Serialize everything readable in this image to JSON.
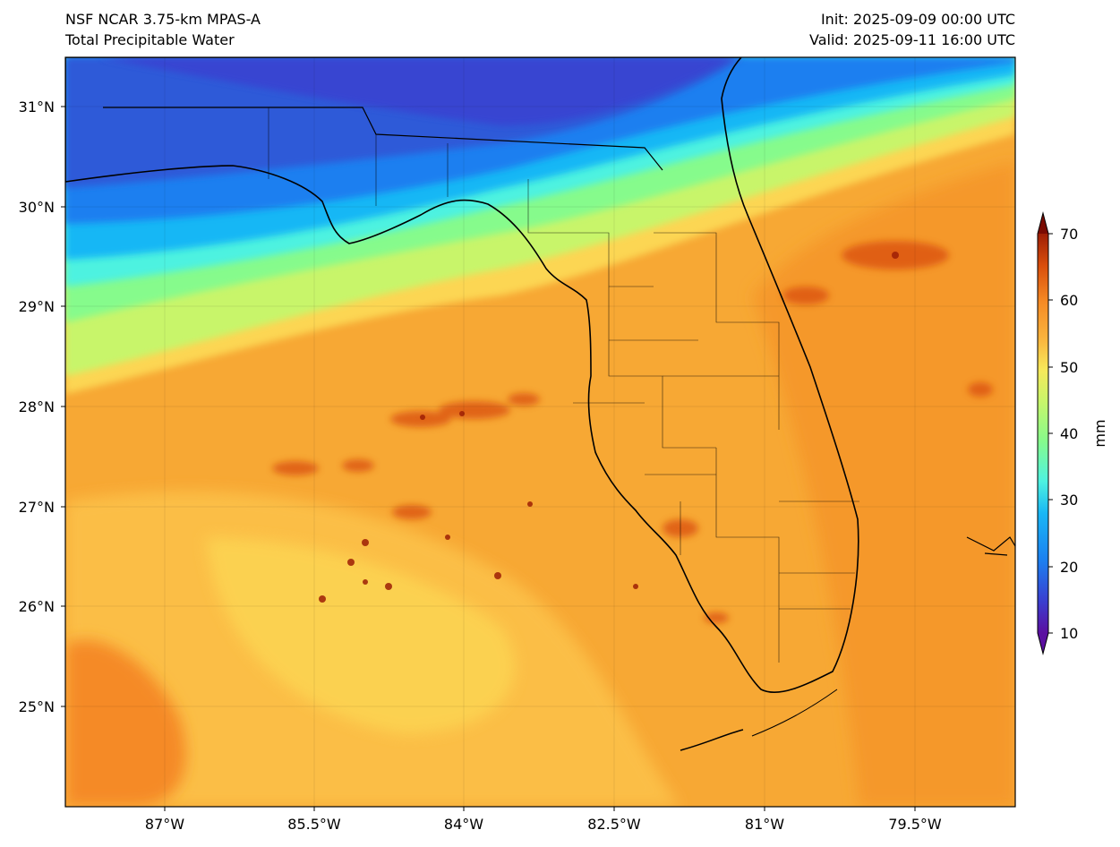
{
  "header": {
    "model": "NSF NCAR 3.75-km MPAS-A",
    "field": "Total Precipitable Water",
    "init": "Init: 2025-09-09 00:00 UTC",
    "valid": "Valid: 2025-09-11 16:00 UTC"
  },
  "map": {
    "region": "Florida and eastern Gulf of Mexico",
    "lon_labels": [
      "87°W",
      "85.5°W",
      "84°W",
      "82.5°W",
      "81°W",
      "79.5°W"
    ],
    "lat_labels": [
      "31°N",
      "30°N",
      "29°N",
      "28°N",
      "27°N",
      "26°N",
      "25°N"
    ]
  },
  "colorbar": {
    "label": "mm",
    "ticks": [
      "70",
      "60",
      "50",
      "40",
      "30",
      "20",
      "10"
    ],
    "range": [
      10,
      70
    ],
    "colors": [
      "#5b0fa0",
      "#3a3fd0",
      "#1c7ff0",
      "#19b7f5",
      "#4ef2e0",
      "#86fb8c",
      "#c8f56a",
      "#f7e85a",
      "#fdd24e",
      "#fab23c",
      "#f58a25",
      "#d94e0c",
      "#9e1f05",
      "#7a0b02"
    ]
  }
}
